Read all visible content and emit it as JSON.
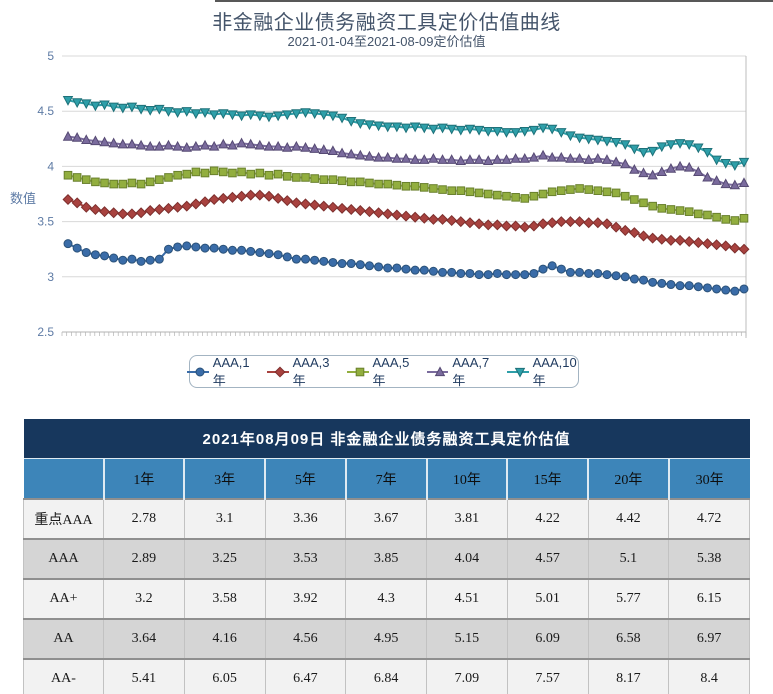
{
  "chart": {
    "title": "非金融企业债务融资工具定价估值曲线",
    "subtitle": "2021-01-04至2021-08-09定价估值",
    "y_axis_label": "数值"
  },
  "chart_data": {
    "type": "line",
    "title": "非金融企业债务融资工具定价估值曲线",
    "subtitle": "2021-01-04至2021-08-09定价估值",
    "xlabel": "",
    "ylabel": "数值",
    "x_range": [
      "2021-01-04",
      "2021-08-09"
    ],
    "ylim": [
      2.5,
      5
    ],
    "y_ticks": [
      5,
      4.5,
      4,
      3.5,
      3,
      2.5
    ],
    "grid": true,
    "legend_position": "bottom",
    "axis_text_color": "#5e7ba5",
    "grid_color": "#d8d8d8",
    "series": [
      {
        "name": "AAA,1年",
        "marker": "circle",
        "color": "#3a6ca8",
        "edge": "#2b5279",
        "values": [
          3.3,
          3.26,
          3.22,
          3.2,
          3.19,
          3.17,
          3.15,
          3.16,
          3.14,
          3.15,
          3.16,
          3.25,
          3.27,
          3.28,
          3.27,
          3.26,
          3.26,
          3.25,
          3.24,
          3.24,
          3.23,
          3.22,
          3.21,
          3.2,
          3.18,
          3.16,
          3.16,
          3.15,
          3.14,
          3.13,
          3.12,
          3.12,
          3.11,
          3.1,
          3.09,
          3.08,
          3.08,
          3.07,
          3.06,
          3.06,
          3.05,
          3.04,
          3.04,
          3.03,
          3.03,
          3.02,
          3.02,
          3.03,
          3.02,
          3.02,
          3.02,
          3.03,
          3.07,
          3.1,
          3.07,
          3.04,
          3.04,
          3.03,
          3.03,
          3.02,
          3.01,
          3.0,
          2.98,
          2.97,
          2.95,
          2.94,
          2.93,
          2.92,
          2.92,
          2.91,
          2.9,
          2.89,
          2.88,
          2.87,
          2.89
        ]
      },
      {
        "name": "AAA,3年",
        "marker": "diamond",
        "color": "#a8423f",
        "edge": "#7d2f2d",
        "values": [
          3.7,
          3.67,
          3.63,
          3.61,
          3.59,
          3.58,
          3.57,
          3.57,
          3.58,
          3.6,
          3.61,
          3.62,
          3.63,
          3.64,
          3.66,
          3.68,
          3.7,
          3.71,
          3.72,
          3.73,
          3.74,
          3.74,
          3.73,
          3.71,
          3.69,
          3.67,
          3.66,
          3.65,
          3.64,
          3.63,
          3.62,
          3.61,
          3.6,
          3.59,
          3.58,
          3.57,
          3.56,
          3.55,
          3.54,
          3.53,
          3.52,
          3.52,
          3.51,
          3.5,
          3.49,
          3.48,
          3.47,
          3.47,
          3.46,
          3.46,
          3.45,
          3.46,
          3.48,
          3.49,
          3.5,
          3.5,
          3.5,
          3.49,
          3.49,
          3.48,
          3.45,
          3.42,
          3.4,
          3.37,
          3.35,
          3.34,
          3.33,
          3.33,
          3.32,
          3.31,
          3.3,
          3.29,
          3.28,
          3.26,
          3.25
        ]
      },
      {
        "name": "AAA,5年",
        "marker": "square",
        "color": "#92ae3f",
        "edge": "#69802d",
        "values": [
          3.92,
          3.9,
          3.88,
          3.86,
          3.85,
          3.84,
          3.84,
          3.85,
          3.84,
          3.86,
          3.88,
          3.9,
          3.92,
          3.93,
          3.95,
          3.94,
          3.96,
          3.95,
          3.94,
          3.95,
          3.93,
          3.94,
          3.92,
          3.93,
          3.91,
          3.9,
          3.9,
          3.89,
          3.88,
          3.88,
          3.87,
          3.86,
          3.86,
          3.85,
          3.84,
          3.84,
          3.83,
          3.82,
          3.82,
          3.81,
          3.8,
          3.79,
          3.78,
          3.78,
          3.77,
          3.76,
          3.75,
          3.74,
          3.73,
          3.72,
          3.71,
          3.73,
          3.75,
          3.77,
          3.78,
          3.79,
          3.8,
          3.79,
          3.78,
          3.77,
          3.76,
          3.73,
          3.7,
          3.67,
          3.64,
          3.62,
          3.61,
          3.6,
          3.59,
          3.57,
          3.56,
          3.54,
          3.52,
          3.51,
          3.53
        ]
      },
      {
        "name": "AAA,7年",
        "marker": "triangle-up",
        "color": "#7a6b9d",
        "edge": "#564a73",
        "values": [
          4.27,
          4.26,
          4.24,
          4.23,
          4.22,
          4.21,
          4.2,
          4.2,
          4.19,
          4.18,
          4.18,
          4.19,
          4.18,
          4.17,
          4.18,
          4.19,
          4.18,
          4.2,
          4.19,
          4.21,
          4.2,
          4.19,
          4.18,
          4.18,
          4.17,
          4.18,
          4.17,
          4.16,
          4.15,
          4.14,
          4.12,
          4.11,
          4.1,
          4.09,
          4.08,
          4.08,
          4.07,
          4.07,
          4.06,
          4.06,
          4.07,
          4.06,
          4.06,
          4.05,
          4.06,
          4.06,
          4.05,
          4.06,
          4.06,
          4.07,
          4.07,
          4.08,
          4.1,
          4.08,
          4.08,
          4.07,
          4.07,
          4.06,
          4.07,
          4.06,
          4.04,
          4.02,
          3.97,
          3.94,
          3.92,
          3.95,
          3.98,
          4.0,
          3.99,
          3.95,
          3.9,
          3.87,
          3.84,
          3.83,
          3.85
        ]
      },
      {
        "name": "AAA,10年",
        "marker": "triangle-down",
        "color": "#2e9fa9",
        "edge": "#1e7179",
        "values": [
          4.6,
          4.58,
          4.57,
          4.55,
          4.56,
          4.54,
          4.53,
          4.54,
          4.52,
          4.51,
          4.52,
          4.5,
          4.49,
          4.5,
          4.48,
          4.49,
          4.47,
          4.48,
          4.47,
          4.46,
          4.47,
          4.46,
          4.45,
          4.46,
          4.47,
          4.48,
          4.49,
          4.48,
          4.47,
          4.46,
          4.44,
          4.41,
          4.39,
          4.38,
          4.37,
          4.36,
          4.36,
          4.35,
          4.36,
          4.35,
          4.34,
          4.35,
          4.34,
          4.33,
          4.34,
          4.33,
          4.32,
          4.32,
          4.31,
          4.31,
          4.32,
          4.33,
          4.35,
          4.34,
          4.31,
          4.28,
          4.26,
          4.25,
          4.24,
          4.23,
          4.22,
          4.2,
          4.16,
          4.13,
          4.14,
          4.18,
          4.2,
          4.21,
          4.2,
          4.17,
          4.13,
          4.06,
          4.03,
          4.01,
          4.04
        ]
      }
    ]
  },
  "table": {
    "title": "2021年08月09日  非金融企业债务融资工具定价估值",
    "columns": [
      "1年",
      "3年",
      "5年",
      "7年",
      "10年",
      "15年",
      "20年",
      "30年"
    ],
    "rows": [
      {
        "label": "重点AAA",
        "values": [
          2.78,
          3.1,
          3.36,
          3.67,
          3.81,
          4.22,
          4.42,
          4.72
        ]
      },
      {
        "label": "AAA",
        "values": [
          2.89,
          3.25,
          3.53,
          3.85,
          4.04,
          4.57,
          5.1,
          5.38
        ]
      },
      {
        "label": "AA+",
        "values": [
          3.2,
          3.58,
          3.92,
          4.3,
          4.51,
          5.01,
          5.77,
          6.15
        ]
      },
      {
        "label": "AA",
        "values": [
          3.64,
          4.16,
          4.56,
          4.95,
          5.15,
          6.09,
          6.58,
          6.97
        ]
      },
      {
        "label": "AA-",
        "values": [
          5.41,
          6.05,
          6.47,
          6.84,
          7.09,
          7.57,
          8.17,
          8.4
        ]
      }
    ],
    "colors": {
      "banner_bg": "#17375d",
      "header_bg": "#3d85b9",
      "row_light": "#f2f2f2",
      "row_dark": "#d5d5d5"
    }
  }
}
